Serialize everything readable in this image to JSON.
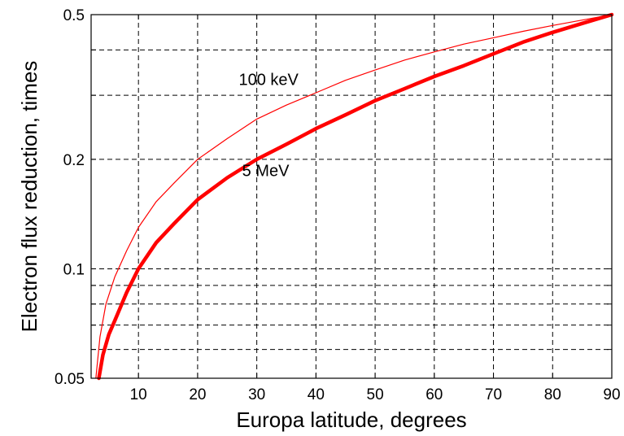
{
  "chart_data": {
    "type": "line",
    "title": "",
    "xlabel": "Europa latitude, degrees",
    "ylabel": "Electron flux reduction, times",
    "xlim": [
      2,
      90
    ],
    "ylim": [
      0.05,
      0.5
    ],
    "yscale": "log",
    "grid": true,
    "x_ticks": [
      10,
      20,
      30,
      40,
      50,
      60,
      70,
      80,
      90
    ],
    "x_tick_labels": [
      "10",
      "20",
      "30",
      "40",
      "50",
      "60",
      "70",
      "80",
      "90"
    ],
    "y_ticks": [
      0.05,
      0.1,
      0.2,
      0.5
    ],
    "y_tick_labels": [
      "0.05",
      "0.1",
      "0.2",
      "0.5"
    ],
    "y_minor_grid": [
      0.06,
      0.07,
      0.08,
      0.09,
      0.3,
      0.4
    ],
    "series": [
      {
        "name": "100 keV",
        "color": "#ff0000",
        "line_width": "thin",
        "x": [
          2.8,
          3.5,
          4.5,
          6,
          8,
          10,
          13,
          16,
          20,
          25,
          30,
          35,
          40,
          45,
          50,
          55,
          60,
          65,
          70,
          75,
          80,
          85,
          90
        ],
        "y": [
          0.05,
          0.065,
          0.08,
          0.095,
          0.112,
          0.13,
          0.153,
          0.172,
          0.2,
          0.228,
          0.258,
          0.282,
          0.305,
          0.33,
          0.352,
          0.375,
          0.395,
          0.415,
          0.432,
          0.45,
          0.467,
          0.483,
          0.5
        ]
      },
      {
        "name": "5 MeV",
        "color": "#ff0000",
        "line_width": "thick",
        "x": [
          3.3,
          4,
          5,
          6,
          8,
          10,
          13,
          16,
          20,
          25,
          30,
          35,
          40,
          45,
          50,
          55,
          60,
          65,
          70,
          75,
          80,
          85,
          90
        ],
        "y": [
          0.05,
          0.058,
          0.066,
          0.072,
          0.086,
          0.1,
          0.118,
          0.133,
          0.155,
          0.178,
          0.2,
          0.22,
          0.243,
          0.265,
          0.29,
          0.313,
          0.338,
          0.362,
          0.39,
          0.42,
          0.447,
          0.473,
          0.5
        ]
      }
    ],
    "annotations": [
      {
        "text": "100 keV",
        "x": 32,
        "y": 0.32
      },
      {
        "text": "5 MeV",
        "x": 31.5,
        "y": 0.18
      }
    ]
  }
}
